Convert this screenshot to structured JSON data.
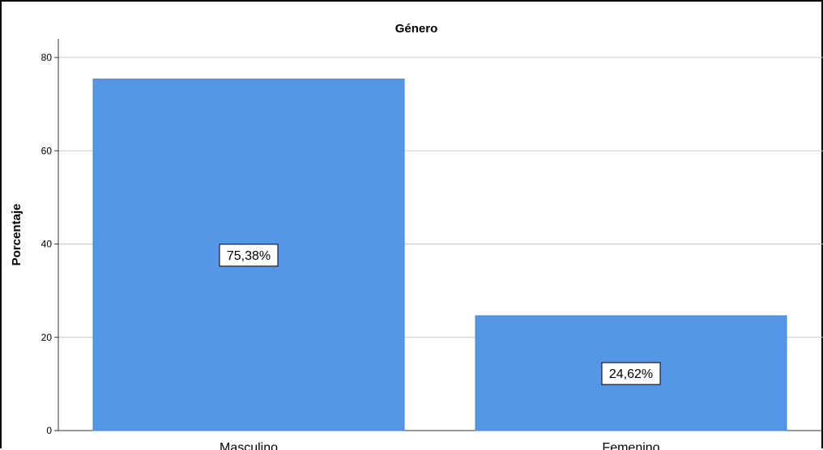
{
  "chart_data": {
    "type": "bar",
    "title": "Género",
    "xlabel": "",
    "ylabel": "Porcentaje",
    "categories": [
      "Masculino",
      "Femenino"
    ],
    "values": [
      75.38,
      24.62
    ],
    "data_labels": [
      "75,38%",
      "24,62%"
    ],
    "ylim": [
      0,
      84
    ],
    "yticks": [
      0,
      20,
      40,
      60,
      80
    ],
    "ytick_labels": [
      "0",
      "20",
      "40",
      "60",
      "80"
    ],
    "grid": true,
    "legend": "none",
    "bar_color": "#5596e6",
    "grid_color": "#c8c8c8"
  }
}
